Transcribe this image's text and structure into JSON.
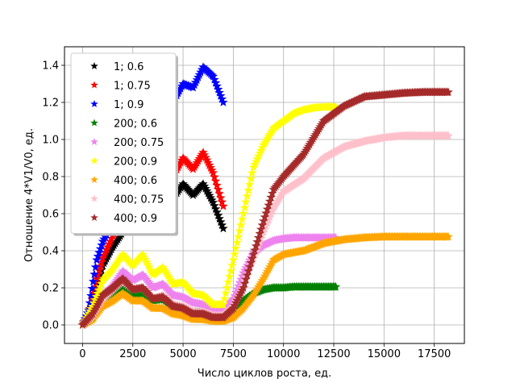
{
  "chart_data": {
    "type": "scatter",
    "xlabel": "Число циклов роста, ед.",
    "ylabel": "Отношение 4*V1/V0, ед.",
    "xlim": [
      -900,
      19000
    ],
    "ylim": [
      -0.1,
      1.5
    ],
    "xticks": [
      0,
      2500,
      5000,
      7500,
      10000,
      12500,
      15000,
      17500
    ],
    "yticks": [
      0.0,
      0.2,
      0.4,
      0.6,
      0.8,
      1.0,
      1.2,
      1.4
    ],
    "xtick_labels": [
      "0",
      "2500",
      "5000",
      "7500",
      "10000",
      "12500",
      "15000",
      "17500"
    ],
    "ytick_labels": [
      "0.0",
      "0.2",
      "0.4",
      "0.6",
      "0.8",
      "1.0",
      "1.2",
      "1.4"
    ],
    "grid": true,
    "legend_position": "upper-left",
    "marker": "star",
    "series": [
      {
        "name": "1; 0.6",
        "color": "#000000",
        "points": [
          [
            0,
            0
          ],
          [
            300,
            0.05
          ],
          [
            700,
            0.2
          ],
          [
            1000,
            0.32
          ],
          [
            1500,
            0.42
          ],
          [
            2000,
            0.5
          ],
          [
            2500,
            0.56
          ],
          [
            3000,
            0.6
          ],
          [
            3500,
            0.62
          ],
          [
            4000,
            0.64
          ],
          [
            4500,
            0.68
          ],
          [
            5000,
            0.76
          ],
          [
            5500,
            0.7
          ],
          [
            6000,
            0.76
          ],
          [
            6500,
            0.66
          ],
          [
            7000,
            0.52
          ]
        ]
      },
      {
        "name": "1; 0.75",
        "color": "#ff0000",
        "points": [
          [
            0,
            0
          ],
          [
            300,
            0.06
          ],
          [
            700,
            0.25
          ],
          [
            1000,
            0.36
          ],
          [
            1500,
            0.48
          ],
          [
            2000,
            0.56
          ],
          [
            2500,
            0.62
          ],
          [
            3000,
            0.68
          ],
          [
            3500,
            0.72
          ],
          [
            4000,
            0.76
          ],
          [
            4500,
            0.8
          ],
          [
            5000,
            0.9
          ],
          [
            5500,
            0.84
          ],
          [
            6000,
            0.93
          ],
          [
            6500,
            0.82
          ],
          [
            7000,
            0.64
          ]
        ]
      },
      {
        "name": "1; 0.9",
        "color": "#0000ff",
        "points": [
          [
            0,
            0
          ],
          [
            300,
            0.08
          ],
          [
            700,
            0.35
          ],
          [
            1000,
            0.45
          ],
          [
            1500,
            0.55
          ],
          [
            2000,
            0.65
          ],
          [
            2500,
            0.78
          ],
          [
            3000,
            0.9
          ],
          [
            3500,
            1.02
          ],
          [
            4000,
            1.12
          ],
          [
            4500,
            1.2
          ],
          [
            5000,
            1.3
          ],
          [
            5500,
            1.28
          ],
          [
            6000,
            1.39
          ],
          [
            6500,
            1.34
          ],
          [
            7000,
            1.2
          ]
        ]
      },
      {
        "name": "200; 0.6",
        "color": "#008000",
        "points": [
          [
            0,
            0
          ],
          [
            500,
            0.04
          ],
          [
            1000,
            0.13
          ],
          [
            1500,
            0.16
          ],
          [
            2000,
            0.2
          ],
          [
            2500,
            0.16
          ],
          [
            3000,
            0.17
          ],
          [
            3500,
            0.13
          ],
          [
            4000,
            0.14
          ],
          [
            4500,
            0.1
          ],
          [
            5000,
            0.09
          ],
          [
            5500,
            0.07
          ],
          [
            6000,
            0.07
          ],
          [
            6500,
            0.05
          ],
          [
            7000,
            0.05
          ],
          [
            7500,
            0.08
          ],
          [
            8000,
            0.13
          ],
          [
            8500,
            0.17
          ],
          [
            9000,
            0.19
          ],
          [
            9500,
            0.2
          ],
          [
            10000,
            0.2
          ],
          [
            10500,
            0.205
          ],
          [
            11000,
            0.205
          ],
          [
            11500,
            0.205
          ],
          [
            12000,
            0.205
          ],
          [
            12600,
            0.205
          ]
        ]
      },
      {
        "name": "200; 0.75",
        "color": "#ee82ee",
        "points": [
          [
            0,
            0
          ],
          [
            500,
            0.07
          ],
          [
            1000,
            0.16
          ],
          [
            1500,
            0.21
          ],
          [
            2000,
            0.29
          ],
          [
            2500,
            0.24
          ],
          [
            3000,
            0.27
          ],
          [
            3500,
            0.2
          ],
          [
            4000,
            0.22
          ],
          [
            4500,
            0.16
          ],
          [
            5000,
            0.15
          ],
          [
            5500,
            0.12
          ],
          [
            6000,
            0.11
          ],
          [
            6500,
            0.08
          ],
          [
            7000,
            0.08
          ],
          [
            7500,
            0.14
          ],
          [
            8000,
            0.28
          ],
          [
            8500,
            0.39
          ],
          [
            9000,
            0.43
          ],
          [
            9500,
            0.455
          ],
          [
            10000,
            0.465
          ],
          [
            10500,
            0.47
          ],
          [
            11000,
            0.47
          ],
          [
            11500,
            0.47
          ],
          [
            12000,
            0.47
          ],
          [
            12600,
            0.47
          ]
        ]
      },
      {
        "name": "200; 0.9",
        "color": "#ffff00",
        "points": [
          [
            0,
            0
          ],
          [
            500,
            0.1
          ],
          [
            1000,
            0.24
          ],
          [
            1500,
            0.3
          ],
          [
            2000,
            0.38
          ],
          [
            2500,
            0.32
          ],
          [
            3000,
            0.38
          ],
          [
            3500,
            0.27
          ],
          [
            4000,
            0.31
          ],
          [
            4500,
            0.22
          ],
          [
            5000,
            0.23
          ],
          [
            5500,
            0.17
          ],
          [
            6000,
            0.16
          ],
          [
            6500,
            0.11
          ],
          [
            7000,
            0.11
          ],
          [
            7500,
            0.35
          ],
          [
            8000,
            0.6
          ],
          [
            8500,
            0.85
          ],
          [
            9000,
            0.97
          ],
          [
            9500,
            1.06
          ],
          [
            10000,
            1.1
          ],
          [
            10500,
            1.14
          ],
          [
            11000,
            1.16
          ],
          [
            11500,
            1.17
          ],
          [
            12000,
            1.175
          ],
          [
            12600,
            1.175
          ]
        ]
      },
      {
        "name": "400; 0.6",
        "color": "#ffa500",
        "points": [
          [
            0,
            0
          ],
          [
            500,
            0.03
          ],
          [
            1000,
            0.1
          ],
          [
            1500,
            0.13
          ],
          [
            2000,
            0.17
          ],
          [
            2500,
            0.13
          ],
          [
            3000,
            0.13
          ],
          [
            3500,
            0.09
          ],
          [
            4000,
            0.09
          ],
          [
            4500,
            0.06
          ],
          [
            5000,
            0.05
          ],
          [
            5500,
            0.03
          ],
          [
            6000,
            0.03
          ],
          [
            6500,
            0.02
          ],
          [
            7000,
            0.02
          ],
          [
            7500,
            0.04
          ],
          [
            8000,
            0.09
          ],
          [
            8500,
            0.16
          ],
          [
            9000,
            0.25
          ],
          [
            9500,
            0.35
          ],
          [
            10000,
            0.38
          ],
          [
            11000,
            0.4
          ],
          [
            12000,
            0.44
          ],
          [
            13000,
            0.46
          ],
          [
            14000,
            0.47
          ],
          [
            15000,
            0.475
          ],
          [
            16000,
            0.475
          ],
          [
            17000,
            0.475
          ],
          [
            18200,
            0.475
          ]
        ]
      },
      {
        "name": "400; 0.75",
        "color": "#ffc0cb",
        "points": [
          [
            0,
            0
          ],
          [
            500,
            0.05
          ],
          [
            1000,
            0.14
          ],
          [
            1500,
            0.19
          ],
          [
            2000,
            0.24
          ],
          [
            2500,
            0.19
          ],
          [
            3000,
            0.2
          ],
          [
            3500,
            0.14
          ],
          [
            4000,
            0.16
          ],
          [
            4500,
            0.11
          ],
          [
            5000,
            0.1
          ],
          [
            5500,
            0.07
          ],
          [
            6000,
            0.07
          ],
          [
            6500,
            0.05
          ],
          [
            7000,
            0.05
          ],
          [
            7500,
            0.1
          ],
          [
            8000,
            0.22
          ],
          [
            8500,
            0.36
          ],
          [
            9000,
            0.5
          ],
          [
            9500,
            0.63
          ],
          [
            10000,
            0.72
          ],
          [
            11000,
            0.79
          ],
          [
            12000,
            0.9
          ],
          [
            13000,
            0.96
          ],
          [
            14000,
            0.99
          ],
          [
            15000,
            1.01
          ],
          [
            16000,
            1.02
          ],
          [
            17000,
            1.02
          ],
          [
            18200,
            1.02
          ]
        ]
      },
      {
        "name": "400; 0.9",
        "color": "#a52a2a",
        "points": [
          [
            0,
            0
          ],
          [
            500,
            0.06
          ],
          [
            1000,
            0.16
          ],
          [
            1500,
            0.2
          ],
          [
            2000,
            0.25
          ],
          [
            2500,
            0.19
          ],
          [
            3000,
            0.2
          ],
          [
            3500,
            0.14
          ],
          [
            4000,
            0.15
          ],
          [
            4500,
            0.1
          ],
          [
            5000,
            0.09
          ],
          [
            5500,
            0.06
          ],
          [
            6000,
            0.06
          ],
          [
            6500,
            0.04
          ],
          [
            7000,
            0.04
          ],
          [
            7500,
            0.09
          ],
          [
            8000,
            0.2
          ],
          [
            8500,
            0.38
          ],
          [
            9000,
            0.56
          ],
          [
            9500,
            0.73
          ],
          [
            10000,
            0.8
          ],
          [
            11000,
            0.92
          ],
          [
            12000,
            1.1
          ],
          [
            13000,
            1.18
          ],
          [
            14000,
            1.23
          ],
          [
            15000,
            1.24
          ],
          [
            16000,
            1.25
          ],
          [
            17000,
            1.255
          ],
          [
            18200,
            1.255
          ]
        ]
      }
    ]
  }
}
